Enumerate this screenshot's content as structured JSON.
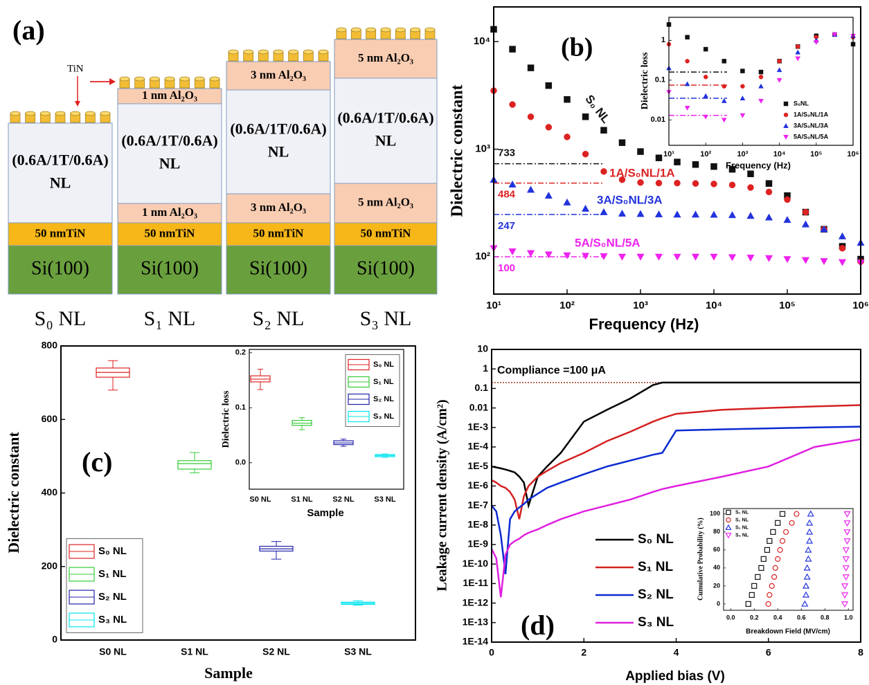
{
  "diagram": {
    "panel_label": "(a)",
    "tin_label": "TiN",
    "stacks": [
      {
        "name": "S₀ NL",
        "layers": [
          {
            "text": [
              "(0.6A/1T/0.6A)",
              "NL"
            ],
            "color": "#f0f1f6"
          },
          {
            "text": [
              "50 nmTiN"
            ],
            "color": "#f7b718"
          },
          {
            "text": [
              "Si(100)"
            ],
            "color": "#6a9f3e"
          }
        ]
      },
      {
        "name": "S₁ NL",
        "layers": [
          {
            "text": [
              "1 nm Al₂O₃"
            ],
            "color": "#f9cdb2"
          },
          {
            "text": [
              "(0.6A/1T/0.6A)",
              "NL"
            ],
            "color": "#f0f1f6"
          },
          {
            "text": [
              "1 nm Al₂O₃"
            ],
            "color": "#f9cdb2"
          },
          {
            "text": [
              "50 nmTiN"
            ],
            "color": "#f7b718"
          },
          {
            "text": [
              "Si(100)"
            ],
            "color": "#6a9f3e"
          }
        ]
      },
      {
        "name": "S₂ NL",
        "layers": [
          {
            "text": [
              "3 nm Al₂O₃"
            ],
            "color": "#f9cdb2"
          },
          {
            "text": [
              "(0.6A/1T/0.6A)",
              "NL"
            ],
            "color": "#f0f1f6"
          },
          {
            "text": [
              "3 nm Al₂O₃"
            ],
            "color": "#f9cdb2"
          },
          {
            "text": [
              "50 nmTiN"
            ],
            "color": "#f7b718"
          },
          {
            "text": [
              "Si(100)"
            ],
            "color": "#6a9f3e"
          }
        ]
      },
      {
        "name": "S₃ NL",
        "layers": [
          {
            "text": [
              "5 nm Al₂O₃"
            ],
            "color": "#f9cdb2"
          },
          {
            "text": [
              "(0.6A/1T/0.6A)",
              "NL"
            ],
            "color": "#f0f1f6"
          },
          {
            "text": [
              "5 nm Al₂O₃"
            ],
            "color": "#f9cdb2"
          },
          {
            "text": [
              "50 nmTiN"
            ],
            "color": "#f7b718"
          },
          {
            "text": [
              "Si(100)"
            ],
            "color": "#6a9f3e"
          }
        ]
      }
    ]
  },
  "chart_data": [
    {
      "type": "scatter",
      "panel_label": "(b)",
      "x_label": "Frequency (Hz)",
      "y_label": "Dielectric constant",
      "xlog": true,
      "ylog": true,
      "xlim": [
        10,
        1000000
      ],
      "ylim": [
        45,
        21000
      ],
      "filled": true,
      "xticks": [
        {
          "value": 10,
          "label": "10¹"
        },
        {
          "value": 100,
          "label": "10²"
        },
        {
          "value": 1000,
          "label": "10³"
        },
        {
          "value": 10000,
          "label": "10⁴"
        },
        {
          "value": 100000,
          "label": "10⁵"
        },
        {
          "value": 1000000,
          "label": "10⁶"
        }
      ],
      "yticks": [
        {
          "value": 100,
          "label": "10²"
        },
        {
          "value": 1000,
          "label": "10³"
        },
        {
          "value": 10000,
          "label": "10⁴"
        }
      ],
      "x": [
        10,
        18,
        32,
        56,
        100,
        178,
        316,
        562,
        1000,
        1778,
        3162,
        5623,
        10000,
        17783,
        31623,
        56234,
        100000,
        177828,
        316228,
        562341,
        1000000
      ],
      "series": [
        {
          "name": "S₀ NL",
          "color": "#111111",
          "marker": "square",
          "values": [
            13000,
            8500,
            5700,
            3900,
            2900,
            2000,
            1500,
            1150,
            950,
            830,
            760,
            720,
            690,
            650,
            590,
            480,
            370,
            260,
            180,
            125,
            95
          ]
        },
        {
          "name": "1A/S₀NL/1A",
          "color": "#dd2222",
          "marker": "circle",
          "values": [
            3500,
            2600,
            2000,
            1600,
            1300,
            900,
            620,
            520,
            490,
            484,
            484,
            480,
            475,
            465,
            440,
            400,
            340,
            260,
            180,
            120,
            90
          ]
        },
        {
          "name": "3A/S₀NL/3A",
          "color": "#2233dd",
          "marker": "triangle",
          "values": [
            520,
            470,
            420,
            370,
            320,
            280,
            260,
            252,
            250,
            248,
            247,
            247,
            246,
            244,
            240,
            232,
            220,
            200,
            180,
            155,
            135
          ]
        },
        {
          "name": "5A/S₀NL/5A",
          "color": "#ee22ee",
          "marker": "triangle-down",
          "values": [
            120,
            112,
            108,
            105,
            103,
            102,
            101,
            100,
            100,
            100,
            100,
            100,
            100,
            99,
            98,
            97,
            95,
            93,
            91,
            89,
            88
          ]
        }
      ],
      "reference_lines": [
        {
          "value": 733,
          "color": "#111111"
        },
        {
          "value": 484,
          "color": "#dd2222"
        },
        {
          "value": 247,
          "color": "#2233dd"
        },
        {
          "value": 100,
          "color": "#ee22ee"
        }
      ]
    },
    {
      "type": "scatter",
      "x_label": "Frequency (Hz)",
      "y_label": "Dielectric loss",
      "xlog": true,
      "ylog": true,
      "xlim": [
        10,
        1000000
      ],
      "ylim": [
        0.0023,
        3.8
      ],
      "filled": true,
      "legend": "lower right",
      "xticks": [
        {
          "value": 10,
          "label": "10¹"
        },
        {
          "value": 100,
          "label": "10²"
        },
        {
          "value": 1000,
          "label": "10³"
        },
        {
          "value": 10000,
          "label": "10⁴"
        },
        {
          "value": 100000,
          "label": "10⁵"
        },
        {
          "value": 1000000,
          "label": "10⁶"
        }
      ],
      "yticks": [
        0.01,
        0.1,
        1
      ],
      "x": [
        10,
        31.6,
        100,
        316,
        1000,
        3162,
        10000,
        31623,
        100000,
        316228,
        1000000
      ],
      "series": [
        {
          "name": "S₀NL",
          "color": "#111111",
          "marker": "square",
          "values": [
            2.5,
            1.2,
            0.6,
            0.3,
            0.17,
            0.16,
            0.3,
            0.7,
            1.3,
            1.4,
            0.8
          ]
        },
        {
          "name": "1A/S₀NL/1A",
          "color": "#dd2222",
          "marker": "circle",
          "values": [
            0.8,
            0.3,
            0.12,
            0.07,
            0.07,
            0.12,
            0.3,
            0.7,
            1.2,
            1.4,
            1.2
          ]
        },
        {
          "name": "3A/S₀NL/3A",
          "color": "#2233dd",
          "marker": "triangle",
          "values": [
            0.2,
            0.08,
            0.04,
            0.03,
            0.035,
            0.07,
            0.18,
            0.5,
            1.0,
            1.4,
            1.3
          ]
        },
        {
          "name": "5A/S₀NL/5A",
          "color": "#ee22ee",
          "marker": "triangle-down",
          "values": [
            0.05,
            0.02,
            0.012,
            0.01,
            0.013,
            0.03,
            0.1,
            0.35,
            0.9,
            1.4,
            1.3
          ]
        }
      ],
      "reference_lines": [
        {
          "value": 0.16,
          "color": "#111111"
        },
        {
          "value": 0.075,
          "color": "#dd2222"
        },
        {
          "value": 0.035,
          "color": "#2233dd"
        },
        {
          "value": 0.013,
          "color": "#ee22ee"
        }
      ]
    },
    {
      "type": "box",
      "panel_label": "(c)",
      "x_label": "Sample",
      "y_label": "Dielectric constant",
      "ylim": [
        0,
        800
      ],
      "yticks": [
        0,
        200,
        400,
        600,
        800
      ],
      "legend": "lower left",
      "categories": [
        "S0 NL",
        "S1 NL",
        "S2 NL",
        "S3 NL"
      ],
      "series": [
        {
          "name": "S₀ NL",
          "color": "#dd2222",
          "min": 680,
          "q1": 715,
          "median": 728,
          "q3": 740,
          "max": 760
        },
        {
          "name": "S₁ NL",
          "color": "#33cc33",
          "min": 455,
          "q1": 465,
          "median": 480,
          "q3": 488,
          "max": 510
        },
        {
          "name": "S₂ NL",
          "color": "#2222aa",
          "min": 220,
          "q1": 242,
          "median": 248,
          "q3": 255,
          "max": 268
        },
        {
          "name": "S₃ NL",
          "color": "#00e5ee",
          "min": 95,
          "q1": 97,
          "median": 100,
          "q3": 103,
          "max": 107
        }
      ]
    },
    {
      "type": "box",
      "x_label": "Sample",
      "y_label": "Dielectric loss",
      "ylim": [
        -0.048,
        0.206
      ],
      "yticks": [
        {
          "value": 0,
          "label": "0.0"
        },
        0.1,
        0.2
      ],
      "legend": "upper right",
      "categories": [
        "S0 NL",
        "S1 NL",
        "S2 NL",
        "S3 NL"
      ],
      "series": [
        {
          "name": "S₀ NL",
          "color": "#dd2222",
          "min": 0.133,
          "q1": 0.147,
          "median": 0.152,
          "q3": 0.158,
          "max": 0.17
        },
        {
          "name": "S₁ NL",
          "color": "#33cc33",
          "min": 0.06,
          "q1": 0.068,
          "median": 0.072,
          "q3": 0.077,
          "max": 0.082
        },
        {
          "name": "S₂ NL",
          "color": "#2222aa",
          "min": 0.03,
          "q1": 0.033,
          "median": 0.036,
          "q3": 0.04,
          "max": 0.043
        },
        {
          "name": "S₃ NL",
          "color": "#00e5ee",
          "min": 0.01,
          "q1": 0.011,
          "median": 0.013,
          "q3": 0.015,
          "max": 0.016
        }
      ]
    },
    {
      "type": "line",
      "panel_label": "(d)",
      "x_label": "Applied bias (V)",
      "y_label": "Leakage current density (A/cm²)",
      "ylog": true,
      "xlim": [
        0,
        8
      ],
      "ylim": [
        1e-14,
        10
      ],
      "legend": "lower right",
      "xticks": [
        0,
        2,
        4,
        6,
        8
      ],
      "yticks": [
        10,
        1,
        0.1,
        0.01,
        {
          "value": 0.001,
          "label": "1E-3"
        },
        {
          "value": 0.0001,
          "label": "1E-4"
        },
        {
          "value": 1e-05,
          "label": "1E-5"
        },
        {
          "value": 1e-06,
          "label": "1E-6"
        },
        {
          "value": 1e-07,
          "label": "1E-7"
        },
        {
          "value": 1e-08,
          "label": "1E-8"
        },
        {
          "value": 1e-09,
          "label": "1E-9"
        },
        {
          "value": 1e-10,
          "label": "1E-10"
        },
        {
          "value": 1e-11,
          "label": "1E-11"
        },
        {
          "value": 1e-12,
          "label": "1E-12"
        },
        {
          "value": 1e-13,
          "label": "1E-13"
        },
        {
          "value": 1e-14,
          "label": "1E-14"
        }
      ],
      "x": [
        0,
        0.1,
        0.2,
        0.3,
        0.4,
        0.5,
        0.6,
        0.7,
        0.8,
        1,
        1.2,
        1.5,
        2,
        2.5,
        3,
        3.5,
        3.7,
        4,
        5,
        6,
        7,
        8
      ],
      "series": [
        {
          "name": "S₀ NL",
          "color": "#000000",
          "values": [
            1e-05,
            9e-06,
            8e-06,
            7e-06,
            6e-06,
            5e-06,
            3e-06,
            1.5e-06,
            1e-07,
            3e-06,
            1e-05,
            5e-05,
            0.002,
            0.008,
            0.03,
            0.15,
            0.2,
            0.2,
            0.2,
            0.2,
            0.2,
            0.2
          ]
        },
        {
          "name": "S₁ NL",
          "color": "#d42020",
          "values": [
            2e-06,
            1.5e-06,
            1e-06,
            8e-07,
            5e-07,
            2e-07,
            2e-08,
            3e-07,
            1e-06,
            3e-06,
            6e-06,
            1.5e-05,
            5e-05,
            0.0002,
            0.0006,
            0.002,
            0.003,
            0.005,
            0.008,
            0.01,
            0.012,
            0.014
          ]
        },
        {
          "name": "S₂ NL",
          "color": "#0a2ad0",
          "values": [
            1e-07,
            5e-08,
            3e-09,
            3e-11,
            2e-08,
            5e-08,
            8e-08,
            1.2e-07,
            2e-07,
            4e-07,
            8e-07,
            1.5e-06,
            4e-06,
            1e-05,
            2e-05,
            4e-05,
            5e-05,
            0.0007,
            0.0008,
            0.0009,
            0.001,
            0.0011
          ]
        },
        {
          "name": "S₃ NL",
          "color": "#e020e0",
          "values": [
            6e-10,
            2e-10,
            2e-12,
            3e-10,
            1e-09,
            1.5e-09,
            2e-09,
            3e-09,
            4e-09,
            6e-09,
            1e-08,
            2e-08,
            5e-08,
            1e-07,
            2e-07,
            5e-07,
            7e-07,
            1e-06,
            3e-06,
            1e-05,
            0.0001,
            0.00025
          ]
        }
      ],
      "compliance": {
        "label": "Compliance =100 μA",
        "value": 0.2
      }
    },
    {
      "type": "scatter",
      "x_label": "Breakdown Field (MV/cm)",
      "y_label": "Cumulative Probability (%)",
      "xlim": [
        -0.06,
        1.04
      ],
      "ylim": [
        -7,
        106
      ],
      "filled": false,
      "legend": "upper left",
      "xticks": [
        {
          "value": 0,
          "label": "0.0"
        },
        0.2,
        0.4,
        0.6,
        0.8,
        {
          "value": 1,
          "label": "1.0"
        }
      ],
      "yticks": [
        0,
        20,
        40,
        60,
        80,
        100
      ],
      "series": [
        {
          "name": "S₀ NL",
          "color": "#111111",
          "marker": "square",
          "x": [
            0.15,
            0.18,
            0.2,
            0.23,
            0.26,
            0.28,
            0.31,
            0.33,
            0.36,
            0.4,
            0.44
          ],
          "values": [
            0,
            10,
            20,
            30,
            40,
            50,
            60,
            70,
            80,
            90,
            100
          ]
        },
        {
          "name": "S₁ NL",
          "color": "#dd2222",
          "marker": "circle",
          "x": [
            0.32,
            0.33,
            0.35,
            0.37,
            0.38,
            0.4,
            0.42,
            0.44,
            0.47,
            0.52,
            0.56
          ],
          "values": [
            0,
            10,
            20,
            30,
            40,
            50,
            60,
            70,
            80,
            90,
            100
          ]
        },
        {
          "name": "S₂ NL",
          "color": "#2233dd",
          "marker": "triangle",
          "x": [
            0.63,
            0.64,
            0.64,
            0.65,
            0.65,
            0.66,
            0.66,
            0.67,
            0.67,
            0.67,
            0.68
          ],
          "values": [
            0,
            10,
            20,
            30,
            40,
            50,
            60,
            70,
            80,
            90,
            100
          ]
        },
        {
          "name": "S₃ NL",
          "color": "#ee22ee",
          "marker": "triangle-down",
          "x": [
            0.97,
            0.97,
            0.97,
            0.98,
            0.98,
            0.98,
            0.98,
            0.99,
            0.99,
            0.99,
            0.99
          ],
          "values": [
            0,
            10,
            20,
            30,
            40,
            50,
            60,
            70,
            80,
            90,
            100
          ]
        }
      ]
    }
  ]
}
